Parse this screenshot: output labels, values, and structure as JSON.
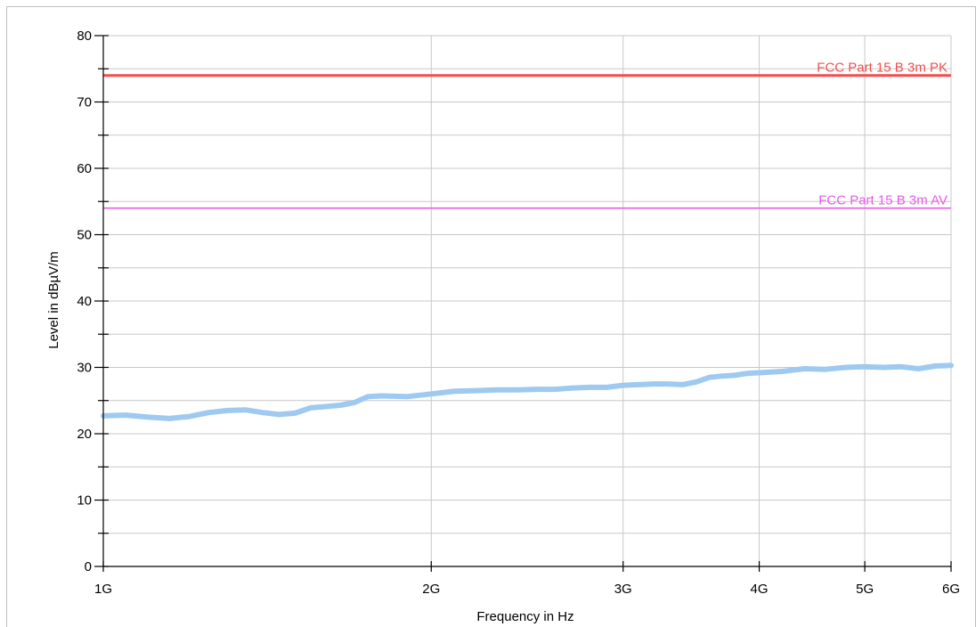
{
  "chart_data": {
    "type": "line",
    "xlabel": "Frequency in Hz",
    "ylabel": "Level in dBµV/m",
    "xscale": "log",
    "xlim": [
      1000000000,
      6000000000
    ],
    "ylim": [
      0,
      80
    ],
    "grid": true,
    "xticks": [
      {
        "value": 1000000000,
        "label": "1G"
      },
      {
        "value": 2000000000,
        "label": "2G"
      },
      {
        "value": 3000000000,
        "label": "3G"
      },
      {
        "value": 4000000000,
        "label": "4G"
      },
      {
        "value": 5000000000,
        "label": "5G"
      },
      {
        "value": 6000000000,
        "label": "6G"
      }
    ],
    "yticks": [
      {
        "value": 0,
        "label": "0"
      },
      {
        "value": 10,
        "label": "10"
      },
      {
        "value": 20,
        "label": "20"
      },
      {
        "value": 30,
        "label": "30"
      },
      {
        "value": 40,
        "label": "40"
      },
      {
        "value": 50,
        "label": "50"
      },
      {
        "value": 60,
        "label": "60"
      },
      {
        "value": 70,
        "label": "70"
      },
      {
        "value": 80,
        "label": "80"
      }
    ],
    "limit_lines": [
      {
        "name": "FCC Part 15 B 3m PK",
        "value": 74,
        "color": "#ef4f4f"
      },
      {
        "name": "FCC Part 15 B 3m AV",
        "value": 54,
        "color": "#e75be8"
      }
    ],
    "series": [
      {
        "color": "#9ec9f0",
        "x": [
          1000000000,
          1050000000,
          1100000000,
          1150000000,
          1200000000,
          1250000000,
          1300000000,
          1350000000,
          1400000000,
          1450000000,
          1500000000,
          1550000000,
          1600000000,
          1650000000,
          1700000000,
          1750000000,
          1800000000,
          1900000000,
          2000000000,
          2100000000,
          2200000000,
          2300000000,
          2400000000,
          2500000000,
          2600000000,
          2700000000,
          2800000000,
          2900000000,
          3000000000,
          3100000000,
          3200000000,
          3300000000,
          3400000000,
          3500000000,
          3600000000,
          3700000000,
          3800000000,
          3900000000,
          4000000000,
          4200000000,
          4400000000,
          4600000000,
          4800000000,
          5000000000,
          5200000000,
          5400000000,
          5600000000,
          5800000000,
          6000000000
        ],
        "y": [
          22.7,
          22.8,
          22.5,
          22.3,
          22.6,
          23.2,
          23.5,
          23.6,
          23.2,
          22.9,
          23.1,
          23.9,
          24.1,
          24.3,
          24.7,
          25.6,
          25.7,
          25.6,
          26.0,
          26.4,
          26.5,
          26.6,
          26.6,
          26.7,
          26.7,
          26.9,
          27.0,
          27.0,
          27.3,
          27.4,
          27.5,
          27.5,
          27.4,
          27.8,
          28.5,
          28.7,
          28.8,
          29.1,
          29.2,
          29.4,
          29.8,
          29.7,
          30.0,
          30.1,
          30.0,
          30.1,
          29.8,
          30.2,
          30.3
        ]
      }
    ]
  }
}
